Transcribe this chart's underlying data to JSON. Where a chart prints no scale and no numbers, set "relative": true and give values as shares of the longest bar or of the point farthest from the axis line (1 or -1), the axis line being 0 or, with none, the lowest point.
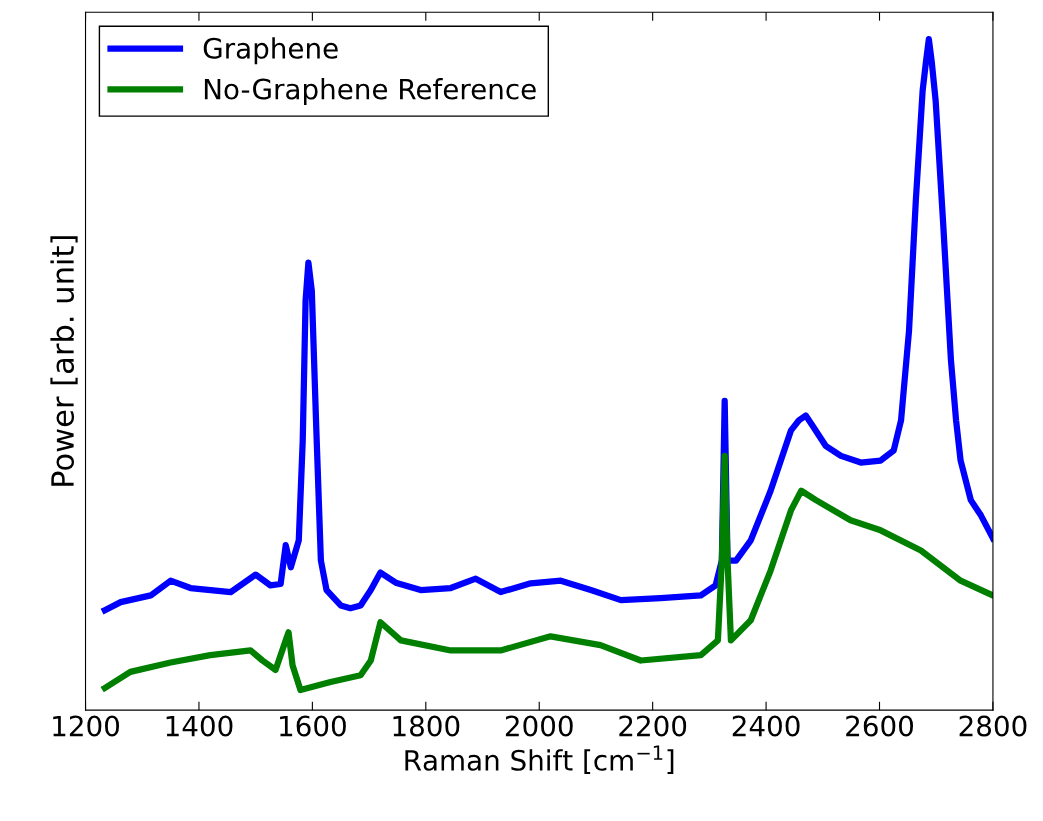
{
  "chart_data": {
    "type": "line",
    "relative": true,
    "xlabel": "Raman Shift [cm$^{−1}$]",
    "ylabel": "Power [arb. unit]",
    "xlim": [
      1200,
      2800
    ],
    "xticks": [
      1200,
      1400,
      1600,
      1800,
      2000,
      2200,
      2400,
      2600,
      2800
    ],
    "grid": false,
    "legend": "top left",
    "marker": "none",
    "line_style": "solid",
    "series": [
      {
        "name": "Graphene",
        "color": "#0000ff",
        "x": [
          1234,
          1262,
          1315,
          1350,
          1385,
          1456,
          1500,
          1526,
          1544,
          1553,
          1562,
          1576,
          1583,
          1588,
          1593,
          1599,
          1607,
          1615,
          1625,
          1650,
          1667,
          1685,
          1703,
          1720,
          1747,
          1791,
          1844,
          1888,
          1932,
          1985,
          2038,
          2091,
          2144,
          2214,
          2285,
          2311,
          2322,
          2327,
          2332,
          2347,
          2373,
          2408,
          2444,
          2458,
          2470,
          2482,
          2505,
          2532,
          2567,
          2602,
          2625,
          2638,
          2652,
          2664,
          2676,
          2682,
          2687,
          2692,
          2699,
          2712,
          2726,
          2735,
          2743,
          2761,
          2779,
          2800
        ],
        "values": [
          0.149,
          0.161,
          0.171,
          0.193,
          0.182,
          0.176,
          0.202,
          0.186,
          0.188,
          0.246,
          0.213,
          0.253,
          0.402,
          0.61,
          0.667,
          0.625,
          0.417,
          0.223,
          0.179,
          0.156,
          0.152,
          0.156,
          0.179,
          0.205,
          0.19,
          0.179,
          0.182,
          0.196,
          0.176,
          0.189,
          0.193,
          0.179,
          0.164,
          0.167,
          0.171,
          0.186,
          0.223,
          0.461,
          0.223,
          0.223,
          0.253,
          0.327,
          0.417,
          0.432,
          0.439,
          0.424,
          0.394,
          0.379,
          0.369,
          0.372,
          0.387,
          0.432,
          0.565,
          0.759,
          0.923,
          0.967,
          1,
          0.967,
          0.908,
          0.729,
          0.521,
          0.432,
          0.372,
          0.313,
          0.29,
          0.256
        ]
      },
      {
        "name": "No-Graphene Reference",
        "color": "#007f00",
        "x": [
          1234,
          1279,
          1350,
          1420,
          1491,
          1512,
          1535,
          1553,
          1558,
          1565,
          1579,
          1632,
          1685,
          1703,
          1720,
          1756,
          1844,
          1932,
          2020,
          2108,
          2179,
          2285,
          2315,
          2322,
          2327,
          2332,
          2338,
          2373,
          2408,
          2444,
          2462,
          2488,
          2549,
          2602,
          2673,
          2743,
          2800
        ],
        "values": [
          0.033,
          0.057,
          0.071,
          0.082,
          0.089,
          0.074,
          0.06,
          0.104,
          0.116,
          0.067,
          0.03,
          0.042,
          0.052,
          0.074,
          0.131,
          0.104,
          0.089,
          0.089,
          0.11,
          0.097,
          0.074,
          0.082,
          0.104,
          0.223,
          0.379,
          0.223,
          0.104,
          0.134,
          0.208,
          0.298,
          0.327,
          0.313,
          0.283,
          0.268,
          0.238,
          0.193,
          0.171
        ]
      }
    ]
  }
}
